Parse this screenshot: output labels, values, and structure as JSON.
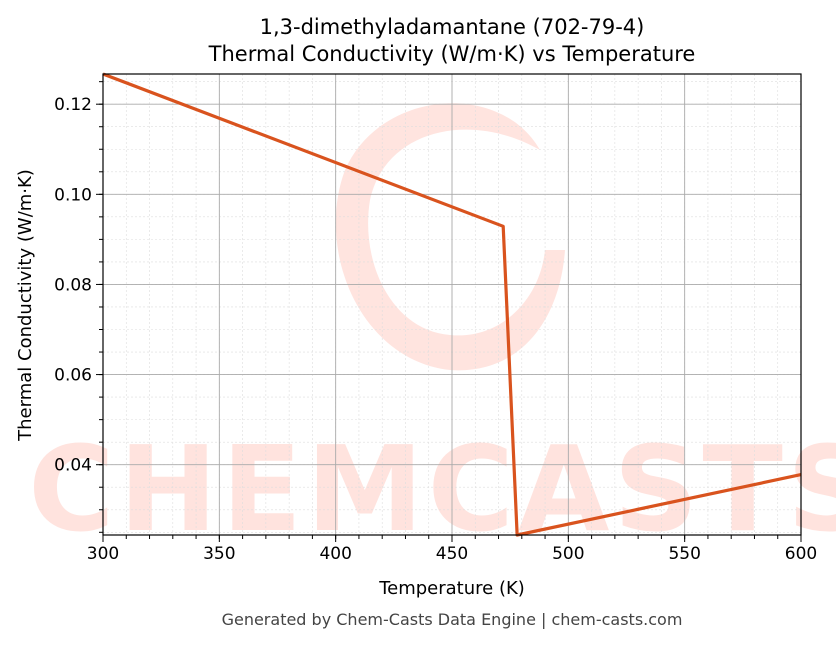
{
  "chart_data": {
    "type": "line",
    "title_line1": "1,3-dimethyladamantane (702-79-4)",
    "title_line2": "Thermal Conductivity (W/m·K) vs Temperature",
    "xlabel": "Temperature (K)",
    "ylabel": "Thermal Conductivity (W/m·K)",
    "xlim": [
      300,
      600
    ],
    "ylim": [
      0.0244,
      0.1267
    ],
    "xticks": [
      300,
      350,
      400,
      450,
      500,
      550,
      600
    ],
    "xtick_labels": [
      "300",
      "350",
      "400",
      "450",
      "500",
      "550",
      "600"
    ],
    "yticks": [
      0.04,
      0.06,
      0.08,
      0.1,
      0.12
    ],
    "ytick_labels": [
      "0.04",
      "0.06",
      "0.08",
      "0.10",
      "0.12"
    ],
    "grid": true,
    "series": [
      {
        "color": "#d9531e",
        "x": [
          300,
          472,
          478,
          600
        ],
        "y": [
          0.1267,
          0.0929,
          0.0244,
          0.0378
        ]
      }
    ],
    "watermark": "CHEMCASTS"
  },
  "footer": "Generated by Chem-Casts Data Engine | chem-casts.com"
}
